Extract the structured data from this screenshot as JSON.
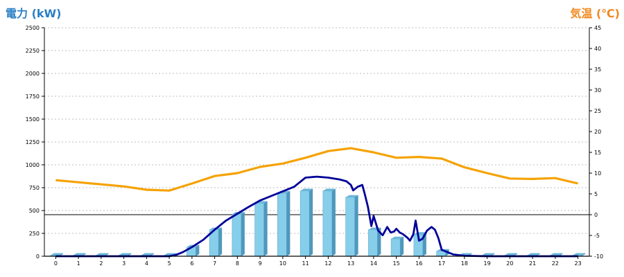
{
  "chart_data": {
    "type": "bar",
    "y_left_label": "電力 (kW)",
    "y_right_label": "気温 (℃)",
    "categories": [
      "0",
      "1",
      "2",
      "3",
      "4",
      "5",
      "6",
      "7",
      "8",
      "9",
      "10",
      "11",
      "12",
      "13",
      "14",
      "15",
      "16",
      "17",
      "18",
      "19",
      "20",
      "21",
      "22",
      "23"
    ],
    "y_left_ticks": [
      0,
      250,
      500,
      750,
      1000,
      1250,
      1500,
      1750,
      2000,
      2250,
      2500
    ],
    "y_right_ticks": [
      -10,
      -5,
      0,
      5,
      10,
      15,
      20,
      25,
      30,
      35,
      40,
      45
    ],
    "ylim_left": [
      0,
      2500
    ],
    "ylim_right": [
      -10,
      45
    ],
    "grid": true,
    "bars_power_kw": [
      10,
      10,
      10,
      10,
      10,
      10,
      100,
      290,
      460,
      580,
      690,
      715,
      715,
      645,
      290,
      190,
      240,
      55,
      10,
      10,
      10,
      10,
      10,
      10
    ],
    "temperature_line": {
      "color": "#f5a200",
      "x": [
        0,
        1,
        2,
        3,
        4,
        5,
        6,
        7,
        8,
        9,
        10,
        11,
        12,
        13,
        14,
        15,
        16,
        17,
        18,
        19,
        20,
        21,
        22,
        23
      ],
      "values": [
        8.3,
        7.8,
        7.3,
        6.8,
        6.0,
        5.8,
        7.5,
        9.3,
        10.0,
        11.5,
        12.3,
        13.7,
        15.3,
        16.0,
        15.0,
        13.7,
        13.9,
        13.5,
        11.4,
        10.0,
        8.7,
        8.6,
        8.8,
        7.5
      ]
    },
    "power_line": {
      "color": "#000099",
      "x": [
        0,
        1,
        2,
        3,
        4,
        5,
        5.3,
        5.6,
        6,
        6.5,
        7,
        7.5,
        8,
        8.5,
        9,
        9.5,
        10,
        10.5,
        11,
        11.5,
        12,
        12.5,
        12.8,
        13,
        13.1,
        13.3,
        13.5,
        13.6,
        13.75,
        13.9,
        14,
        14.2,
        14.4,
        14.6,
        14.75,
        14.9,
        15,
        15.15,
        15.3,
        15.5,
        15.6,
        15.75,
        15.85,
        16,
        16.15,
        16.35,
        16.55,
        16.7,
        16.85,
        17,
        17.5,
        18,
        19,
        20,
        21,
        22,
        23
      ],
      "values": [
        0,
        0,
        0,
        0,
        0,
        0,
        15,
        45,
        100,
        180,
        290,
        390,
        465,
        540,
        610,
        660,
        710,
        760,
        860,
        870,
        860,
        840,
        820,
        780,
        720,
        760,
        780,
        690,
        540,
        330,
        440,
        280,
        230,
        320,
        260,
        270,
        300,
        260,
        240,
        200,
        170,
        240,
        390,
        170,
        190,
        280,
        320,
        290,
        200,
        70,
        20,
        5,
        0,
        0,
        0,
        0,
        0
      ]
    }
  }
}
